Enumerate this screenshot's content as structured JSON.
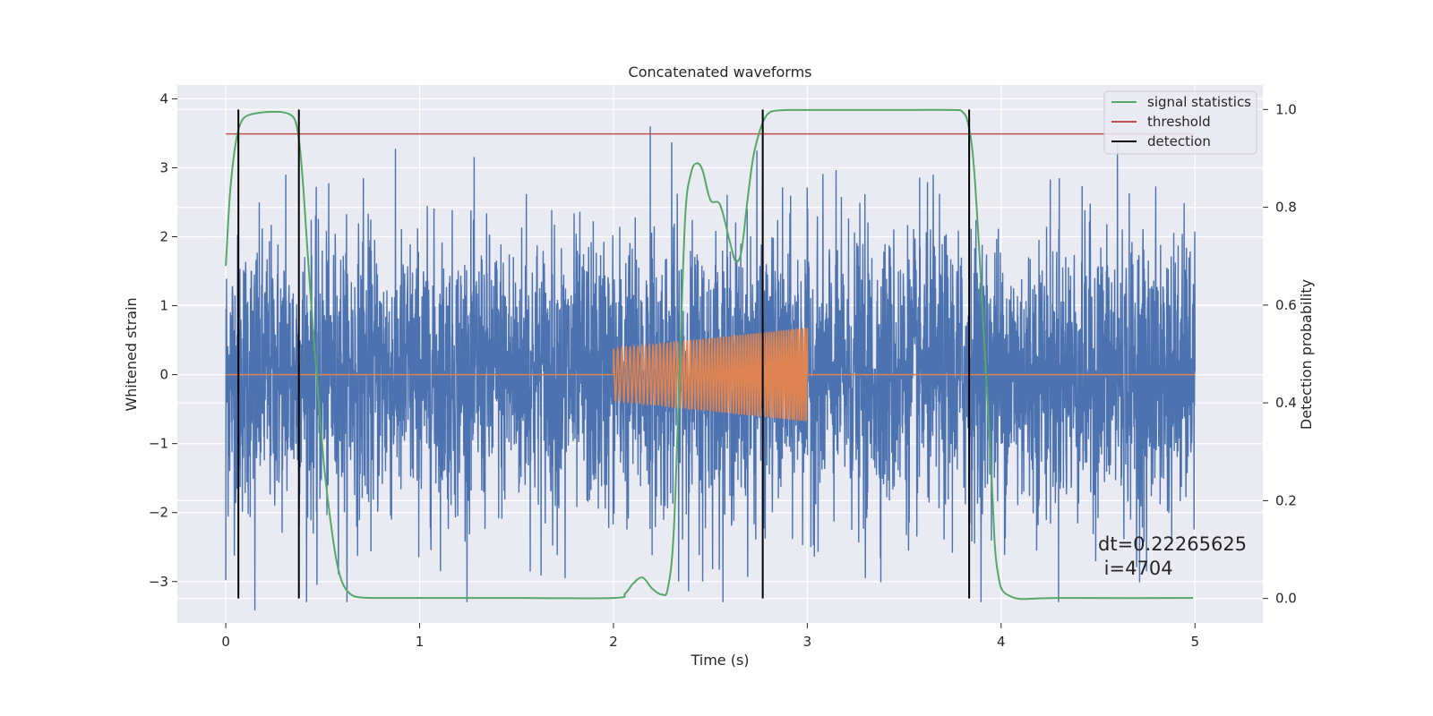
{
  "chart_data": {
    "type": "line",
    "title": "Concatenated waveforms",
    "xlabel": "Time (s)",
    "ylabel_left": "Whitened strain",
    "ylabel_right": "Detection probability",
    "xlim": [
      -0.25,
      5.35
    ],
    "ylim_left": [
      -3.6,
      4.2
    ],
    "ylim_right": [
      -0.05,
      1.05
    ],
    "x_ticks": [
      0,
      1,
      2,
      3,
      4,
      5
    ],
    "y_ticks_left": [
      -3,
      -2,
      -1,
      0,
      1,
      2,
      3,
      4
    ],
    "y_ticks_right": [
      0.0,
      0.2,
      0.4,
      0.6,
      0.8,
      1.0
    ],
    "x_tick_labels": [
      "0",
      "1",
      "2",
      "3",
      "4",
      "5"
    ],
    "y_tick_labels_left": [
      "−3",
      "−2",
      "−1",
      "0",
      "1",
      "2",
      "3",
      "4"
    ],
    "y_tick_labels_right": [
      "0.0",
      "0.2",
      "0.4",
      "0.6",
      "0.8",
      "1.0"
    ],
    "grid": true,
    "legend_position": "top-right",
    "colors": {
      "strain": "#4c72b0",
      "template": "#dd8452",
      "signal_statistics": "#55a868",
      "threshold": "#c44e52",
      "detection": "#000000",
      "background": "#eaeaf2",
      "grid": "#ffffff"
    },
    "series": [
      {
        "name": "",
        "axis": "left",
        "kind": "noise",
        "x_range": [
          0,
          5
        ],
        "amplitude": 1.0,
        "extremes": [
          {
            "x": 0.0,
            "y": -2.98
          },
          {
            "x": 0.15,
            "y": -3.42
          },
          {
            "x": 0.31,
            "y": 2.9
          },
          {
            "x": 0.47,
            "y": -3.05
          },
          {
            "x": 0.71,
            "y": 2.85
          },
          {
            "x": 1.55,
            "y": 2.62
          },
          {
            "x": 1.75,
            "y": -2.95
          },
          {
            "x": 2.19,
            "y": 3.6
          },
          {
            "x": 2.3,
            "y": 3.37
          },
          {
            "x": 2.46,
            "y": -3.0
          },
          {
            "x": 2.74,
            "y": 3.25
          },
          {
            "x": 3.3,
            "y": -2.95
          },
          {
            "x": 3.65,
            "y": 2.9
          },
          {
            "x": 4.3,
            "y": 2.85
          },
          {
            "x": 4.6,
            "y": 3.35
          },
          {
            "x": 4.75,
            "y": -2.85
          }
        ]
      },
      {
        "name": "",
        "axis": "left",
        "kind": "chirp",
        "x": [
          0,
          2,
          2,
          3,
          3,
          5
        ],
        "y": [
          0,
          0,
          0.38,
          0.68,
          0,
          0
        ],
        "start_cycles_per_s": 45,
        "end_cycles_per_s": 85
      },
      {
        "name": "signal statistics",
        "axis": "right",
        "x": [
          0.0,
          0.02,
          0.04,
          0.06,
          0.08,
          0.1,
          0.13,
          0.17,
          0.22,
          0.28,
          0.33,
          0.36,
          0.38,
          0.4,
          0.42,
          0.45,
          0.48,
          0.51,
          0.55,
          0.58,
          0.61,
          0.65,
          0.7,
          0.8,
          1.0,
          1.5,
          2.0,
          2.06,
          2.1,
          2.15,
          2.2,
          2.25,
          2.28,
          2.31,
          2.34,
          2.37,
          2.4,
          2.43,
          2.46,
          2.5,
          2.55,
          2.6,
          2.63,
          2.66,
          2.69,
          2.72,
          2.75,
          2.78,
          2.81,
          2.85,
          2.9,
          3.0,
          3.5,
          3.75,
          3.8,
          3.83,
          3.86,
          3.9,
          3.95,
          3.98,
          4.05,
          4.3,
          4.99
        ],
        "y": [
          0.68,
          0.82,
          0.9,
          0.95,
          0.975,
          0.985,
          0.99,
          0.993,
          0.995,
          0.995,
          0.99,
          0.975,
          0.93,
          0.84,
          0.72,
          0.55,
          0.4,
          0.26,
          0.13,
          0.06,
          0.025,
          0.007,
          0.002,
          0.001,
          0.001,
          0.001,
          0.001,
          0.01,
          0.03,
          0.043,
          0.02,
          0.008,
          0.02,
          0.13,
          0.45,
          0.78,
          0.87,
          0.89,
          0.875,
          0.815,
          0.805,
          0.73,
          0.69,
          0.71,
          0.81,
          0.9,
          0.95,
          0.982,
          0.995,
          0.998,
          0.999,
          0.999,
          0.999,
          0.999,
          0.995,
          0.97,
          0.88,
          0.62,
          0.25,
          0.06,
          0.004,
          0.001,
          0.001
        ]
      },
      {
        "name": "threshold",
        "axis": "right",
        "x": [
          0,
          5
        ],
        "y": [
          0.95,
          0.95
        ]
      }
    ],
    "detections": {
      "name": "detection",
      "x": [
        0.065,
        0.377,
        2.77,
        3.835
      ],
      "ymin": 0.0,
      "ymax": 1.0,
      "axis": "right"
    },
    "annotation": {
      "line1": "dt=0.22265625",
      "line2": " i=4704",
      "x": 4.52,
      "y": -2.6
    }
  }
}
